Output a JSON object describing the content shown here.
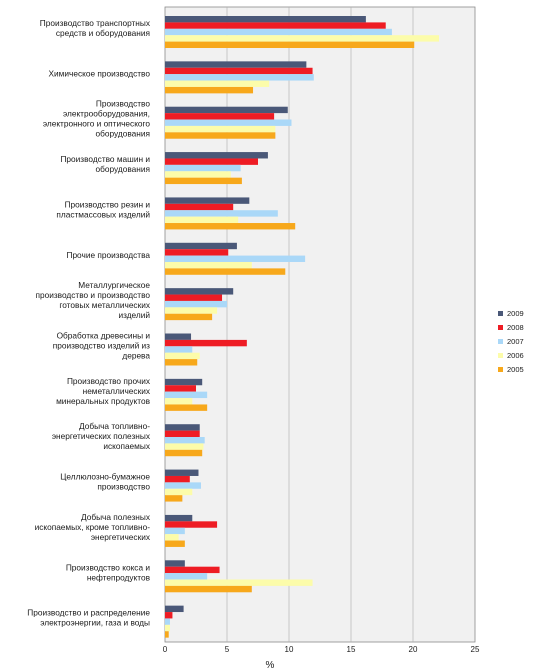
{
  "chart_data": {
    "type": "bar",
    "orientation": "horizontal",
    "title": "",
    "xlabel": "%",
    "ylabel": "",
    "xlim": [
      0,
      25
    ],
    "xticks": [
      0,
      5,
      10,
      15,
      20,
      25
    ],
    "grid": true,
    "legend_position": "right",
    "categories": [
      [
        "Производство транспортных",
        "средств и оборудования"
      ],
      [
        "Химическое производство"
      ],
      [
        "Производство",
        "электрооборудования,",
        "электронного и оптического",
        "оборудования"
      ],
      [
        "Производство машин и",
        "оборудования"
      ],
      [
        "Производство резин и",
        "пластмассовых изделий"
      ],
      [
        "Прочие производства"
      ],
      [
        "Металлургическое",
        "производство и производство",
        "готовых металлических",
        "изделий"
      ],
      [
        "Обработка древесины и",
        "производство изделий из",
        "дерева"
      ],
      [
        "Производство прочих",
        "неметаллических",
        "минеральных продуктов"
      ],
      [
        "Добыча топливно-",
        "энергетических полезных",
        "ископаемых"
      ],
      [
        "Целлюлозно-бумажное",
        "производство"
      ],
      [
        "Добыча полезных",
        "ископаемых, кроме топливно-",
        "энергетических"
      ],
      [
        "Производство кокса и",
        "нефтепродуктов"
      ],
      [
        "Производство и распределение",
        "электроэнергии, газа и воды"
      ]
    ],
    "series": [
      {
        "name": "2009",
        "color": "#4a5878",
        "values": [
          16.2,
          11.4,
          9.9,
          8.3,
          6.8,
          5.8,
          5.5,
          2.1,
          3.0,
          2.8,
          2.7,
          2.2,
          1.6,
          1.5
        ]
      },
      {
        "name": "2008",
        "color": "#ee1c24",
        "values": [
          17.8,
          11.9,
          8.8,
          7.5,
          5.5,
          5.1,
          4.6,
          6.6,
          2.5,
          2.8,
          2.0,
          4.2,
          4.4,
          0.6
        ]
      },
      {
        "name": "2007",
        "color": "#aad8f8",
        "values": [
          18.3,
          12.0,
          10.2,
          6.1,
          9.1,
          11.3,
          5.0,
          2.2,
          3.4,
          3.2,
          2.9,
          1.6,
          3.4,
          0.4
        ]
      },
      {
        "name": "2006",
        "color": "#fcfcaa",
        "values": [
          22.1,
          8.4,
          8.9,
          5.3,
          5.9,
          7.0,
          4.2,
          2.8,
          2.2,
          3.1,
          2.2,
          1.1,
          11.9,
          0.4
        ]
      },
      {
        "name": "2005",
        "color": "#f7a81b",
        "values": [
          20.1,
          7.1,
          8.9,
          6.2,
          10.5,
          9.7,
          3.8,
          2.6,
          3.4,
          3.0,
          1.4,
          1.6,
          7.0,
          0.3
        ]
      }
    ]
  }
}
